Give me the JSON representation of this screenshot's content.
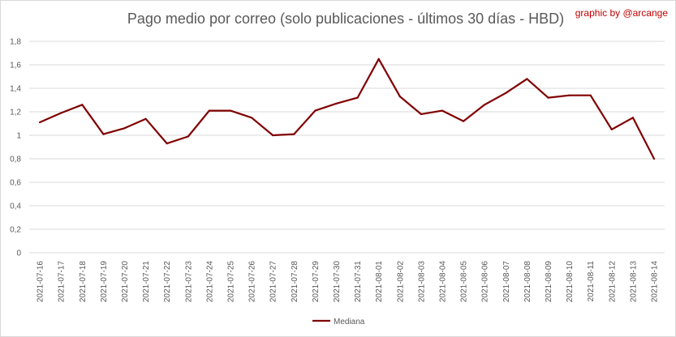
{
  "colors": {
    "series": "#800000",
    "credit": "#c00000",
    "grid": "#d9d9d9",
    "text": "#595959"
  },
  "chart_data": {
    "type": "line",
    "title": "Pago medio por correo (solo publicaciones - últimos 30 días - HBD)",
    "credit": "graphic by @arcange",
    "xlabel": "",
    "ylabel": "",
    "ylim": [
      0,
      1.8
    ],
    "yticks": [
      "0",
      "0,2",
      "0,4",
      "0,6",
      "0,8",
      "1",
      "1,2",
      "1,4",
      "1,6",
      "1,8"
    ],
    "grid": true,
    "legend_position": "bottom",
    "categories": [
      "2021-07-16",
      "2021-07-17",
      "2021-07-18",
      "2021-07-19",
      "2021-07-20",
      "2021-07-21",
      "2021-07-22",
      "2021-07-23",
      "2021-07-24",
      "2021-07-25",
      "2021-07-26",
      "2021-07-27",
      "2021-07-28",
      "2021-07-29",
      "2021-07-30",
      "2021-07-31",
      "2021-08-01",
      "2021-08-02",
      "2021-08-03",
      "2021-08-04",
      "2021-08-05",
      "2021-08-06",
      "2021-08-07",
      "2021-08-08",
      "2021-08-09",
      "2021-08-10",
      "2021-08-11",
      "2021-08-12",
      "2021-08-13",
      "2021-08-14"
    ],
    "series": [
      {
        "name": "Mediana",
        "values": [
          1.11,
          1.19,
          1.26,
          1.01,
          1.06,
          1.14,
          0.93,
          0.99,
          1.21,
          1.21,
          1.15,
          1.0,
          1.01,
          1.21,
          1.27,
          1.32,
          1.65,
          1.33,
          1.18,
          1.21,
          1.12,
          1.26,
          1.36,
          1.48,
          1.32,
          1.34,
          1.34,
          1.05,
          1.15,
          0.8
        ]
      }
    ]
  }
}
